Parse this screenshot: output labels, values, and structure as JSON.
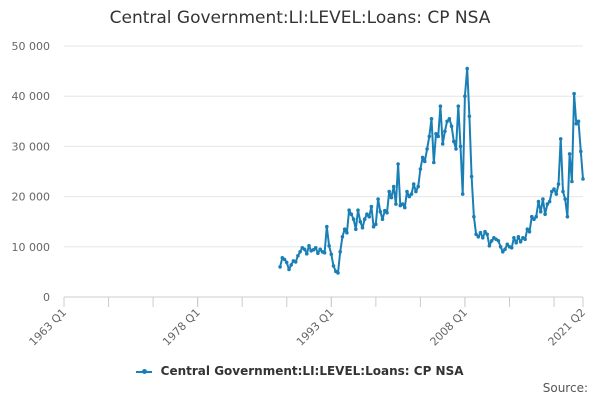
{
  "chart_data": {
    "type": "line",
    "title": "Central Government:LI:LEVEL:Loans: CP NSA",
    "xlabel": "",
    "ylabel": "",
    "x_tick_labels": [
      "1963 Q1",
      "1978 Q1",
      "1993 Q1",
      "2008 Q1",
      "2021 Q2"
    ],
    "x_tick_values": [
      1963.0,
      1978.0,
      1993.0,
      2008.0,
      2021.25
    ],
    "y_tick_labels": [
      "0",
      "10 000",
      "20 000",
      "30 000",
      "40 000",
      "50 000"
    ],
    "y_tick_values": [
      0,
      10000,
      20000,
      30000,
      40000,
      50000
    ],
    "xlim": [
      1963.0,
      2021.25
    ],
    "ylim": [
      0,
      50000
    ],
    "grid": "horizontal",
    "legend_position": "bottom",
    "series": [
      {
        "name": "Central Government:LI:LEVEL:Loans: CP NSA",
        "color": "#1a7fb5",
        "points": [
          [
            1987.25,
            6000
          ],
          [
            1987.5,
            7800
          ],
          [
            1987.75,
            7500
          ],
          [
            1988.0,
            6900
          ],
          [
            1988.25,
            5500
          ],
          [
            1988.5,
            6400
          ],
          [
            1988.75,
            7200
          ],
          [
            1989.0,
            7000
          ],
          [
            1989.25,
            8200
          ],
          [
            1989.5,
            9000
          ],
          [
            1989.75,
            9800
          ],
          [
            1990.0,
            9500
          ],
          [
            1990.25,
            8600
          ],
          [
            1990.5,
            10200
          ],
          [
            1990.75,
            9200
          ],
          [
            1991.0,
            9400
          ],
          [
            1991.25,
            9800
          ],
          [
            1991.5,
            8700
          ],
          [
            1991.75,
            9500
          ],
          [
            1992.0,
            9000
          ],
          [
            1992.25,
            8800
          ],
          [
            1992.5,
            14000
          ],
          [
            1992.75,
            10200
          ],
          [
            1993.0,
            8500
          ],
          [
            1993.25,
            6200
          ],
          [
            1993.5,
            5100
          ],
          [
            1993.75,
            4800
          ],
          [
            1994.0,
            9000
          ],
          [
            1994.25,
            12000
          ],
          [
            1994.5,
            13500
          ],
          [
            1994.75,
            12800
          ],
          [
            1995.0,
            17300
          ],
          [
            1995.25,
            16500
          ],
          [
            1995.5,
            15500
          ],
          [
            1995.75,
            13500
          ],
          [
            1996.0,
            17300
          ],
          [
            1996.25,
            15000
          ],
          [
            1996.5,
            13800
          ],
          [
            1996.75,
            15500
          ],
          [
            1997.0,
            16500
          ],
          [
            1997.25,
            16000
          ],
          [
            1997.5,
            18000
          ],
          [
            1997.75,
            14000
          ],
          [
            1998.0,
            14500
          ],
          [
            1998.25,
            19500
          ],
          [
            1998.5,
            17000
          ],
          [
            1998.75,
            15500
          ],
          [
            1999.0,
            17200
          ],
          [
            1999.25,
            16800
          ],
          [
            1999.5,
            21000
          ],
          [
            1999.75,
            19800
          ],
          [
            2000.0,
            22000
          ],
          [
            2000.25,
            18500
          ],
          [
            2000.5,
            26500
          ],
          [
            2000.75,
            18200
          ],
          [
            2001.0,
            18500
          ],
          [
            2001.25,
            17800
          ],
          [
            2001.5,
            21000
          ],
          [
            2001.75,
            20000
          ],
          [
            2002.0,
            20500
          ],
          [
            2002.25,
            22500
          ],
          [
            2002.5,
            21000
          ],
          [
            2002.75,
            22000
          ],
          [
            2003.0,
            25500
          ],
          [
            2003.25,
            27800
          ],
          [
            2003.5,
            27000
          ],
          [
            2003.75,
            29500
          ],
          [
            2004.0,
            32000
          ],
          [
            2004.25,
            35500
          ],
          [
            2004.5,
            26800
          ],
          [
            2004.75,
            32500
          ],
          [
            2005.0,
            32000
          ],
          [
            2005.25,
            38000
          ],
          [
            2005.5,
            30500
          ],
          [
            2005.75,
            33000
          ],
          [
            2006.0,
            35000
          ],
          [
            2006.25,
            35500
          ],
          [
            2006.5,
            34000
          ],
          [
            2006.75,
            31000
          ],
          [
            2007.0,
            29500
          ],
          [
            2007.25,
            38000
          ],
          [
            2007.5,
            30000
          ],
          [
            2007.75,
            20500
          ],
          [
            2008.0,
            40000
          ],
          [
            2008.25,
            45500
          ],
          [
            2008.5,
            36000
          ],
          [
            2008.75,
            24000
          ],
          [
            2009.0,
            16000
          ],
          [
            2009.25,
            12500
          ],
          [
            2009.5,
            12000
          ],
          [
            2009.75,
            12800
          ],
          [
            2010.0,
            11800
          ],
          [
            2010.25,
            13000
          ],
          [
            2010.5,
            12500
          ],
          [
            2010.75,
            10200
          ],
          [
            2011.0,
            11200
          ],
          [
            2011.25,
            11800
          ],
          [
            2011.5,
            11500
          ],
          [
            2011.75,
            11200
          ],
          [
            2012.0,
            10000
          ],
          [
            2012.25,
            9000
          ],
          [
            2012.5,
            9500
          ],
          [
            2012.75,
            10500
          ],
          [
            2013.0,
            10000
          ],
          [
            2013.25,
            9800
          ],
          [
            2013.5,
            11800
          ],
          [
            2013.75,
            10800
          ],
          [
            2014.0,
            12000
          ],
          [
            2014.25,
            11000
          ],
          [
            2014.5,
            11800
          ],
          [
            2014.75,
            11500
          ],
          [
            2015.0,
            13500
          ],
          [
            2015.25,
            13000
          ],
          [
            2015.5,
            16000
          ],
          [
            2015.75,
            15500
          ],
          [
            2016.0,
            16000
          ],
          [
            2016.25,
            19000
          ],
          [
            2016.5,
            17000
          ],
          [
            2016.75,
            19500
          ],
          [
            2017.0,
            16500
          ],
          [
            2017.25,
            18500
          ],
          [
            2017.5,
            19000
          ],
          [
            2017.75,
            21000
          ],
          [
            2018.0,
            21500
          ],
          [
            2018.25,
            20500
          ],
          [
            2018.5,
            22500
          ],
          [
            2018.75,
            31500
          ],
          [
            2019.0,
            21000
          ],
          [
            2019.25,
            19500
          ],
          [
            2019.5,
            16000
          ],
          [
            2019.75,
            28500
          ],
          [
            2020.0,
            23000
          ],
          [
            2020.25,
            40500
          ],
          [
            2020.5,
            34500
          ],
          [
            2020.75,
            35000
          ],
          [
            2021.0,
            29000
          ],
          [
            2021.25,
            23500
          ]
        ]
      }
    ]
  },
  "footer": {
    "source_label": "Source:"
  }
}
